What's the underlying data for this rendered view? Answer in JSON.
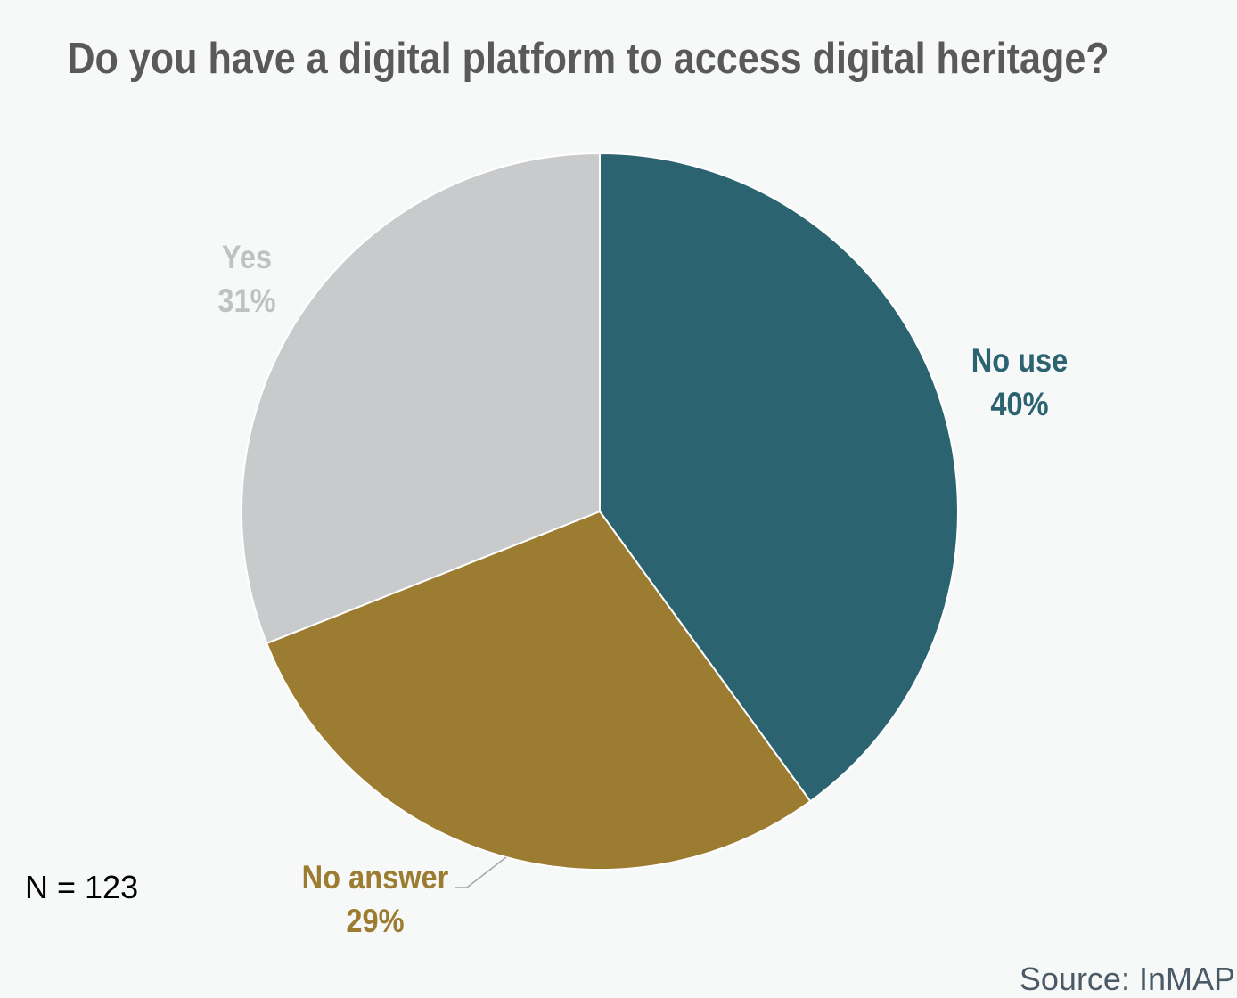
{
  "chart_data": {
    "type": "pie",
    "title": "Do you have a digital platform to access digital heritage?",
    "slices": [
      {
        "label": "No use",
        "value": 40,
        "value_label": "40%",
        "color": "#2c6370",
        "label_color": "#2c6370"
      },
      {
        "label": "No answer",
        "value": 29,
        "value_label": "29%",
        "color": "#9c7c30",
        "label_color": "#9c7c30"
      },
      {
        "label": "Yes",
        "value": 31,
        "value_label": "31%",
        "color": "#c9cacc",
        "label_color": "#c0c1c3"
      }
    ],
    "start_angle": "12 o'clock",
    "direction": "clockwise",
    "legend": "none"
  },
  "notes": {
    "sample_size": "N = 123",
    "source": "Source: InMAP"
  }
}
